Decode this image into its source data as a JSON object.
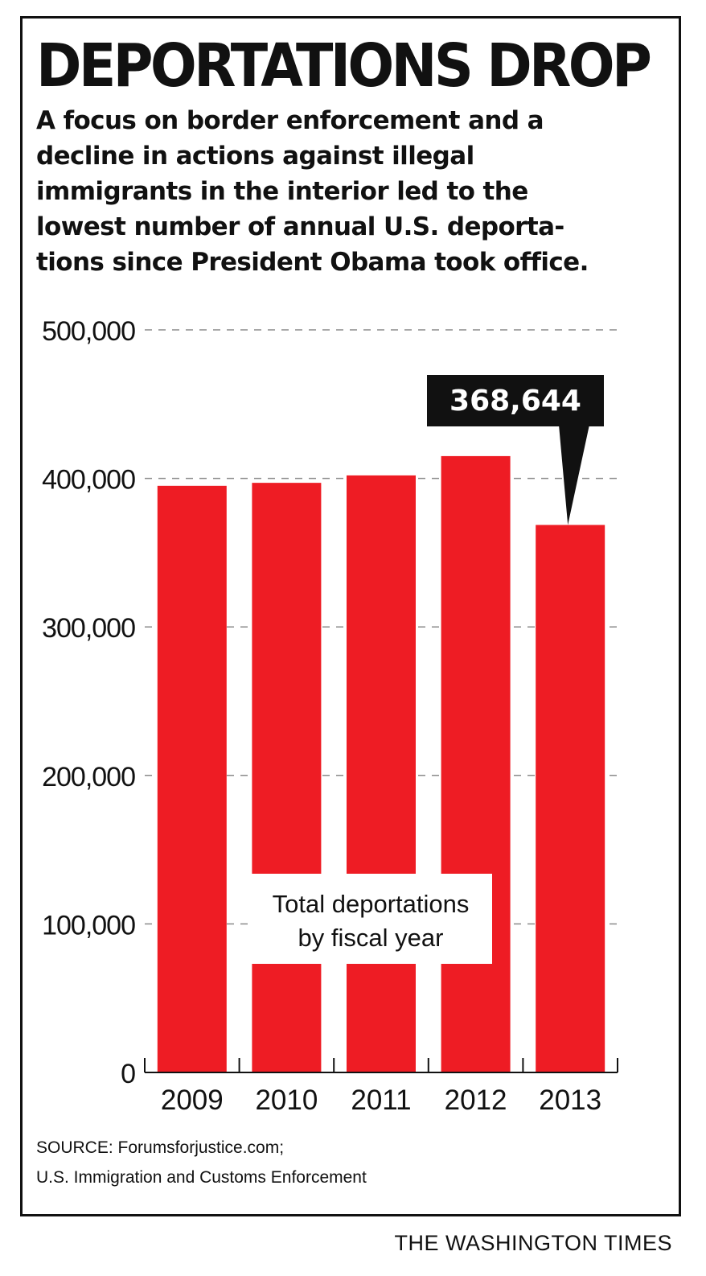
{
  "title": "DEPORTATIONS DROP",
  "subtitle_lines": [
    "A focus on border enforcement and a",
    "decline in actions against illegal",
    "immigrants in the interior led to the",
    "lowest number of annual U.S. deporta-",
    "tions since President Obama took office."
  ],
  "chart_data": {
    "type": "bar",
    "categories": [
      "2009",
      "2010",
      "2011",
      "2012",
      "2013"
    ],
    "values": [
      395000,
      397000,
      402000,
      415000,
      368644
    ],
    "yticks": [
      0,
      100000,
      200000,
      300000,
      400000,
      500000
    ],
    "ytick_labels": [
      "0",
      "100,000",
      "200,000",
      "300,000",
      "400,000",
      "500,000"
    ],
    "ylim": [
      0,
      500000
    ],
    "grid": "dashed horizontal",
    "bar_color": "#ee1c24",
    "callout": {
      "category": "2013",
      "label": "368,644"
    },
    "inset_label_lines": [
      "Total deportations",
      "by fiscal year"
    ]
  },
  "source_lines": [
    "SOURCE: Forumsforjustice.com;",
    "U.S. Immigration and Customs Enforcement"
  ],
  "credit": "THE WASHINGTON TIMES"
}
